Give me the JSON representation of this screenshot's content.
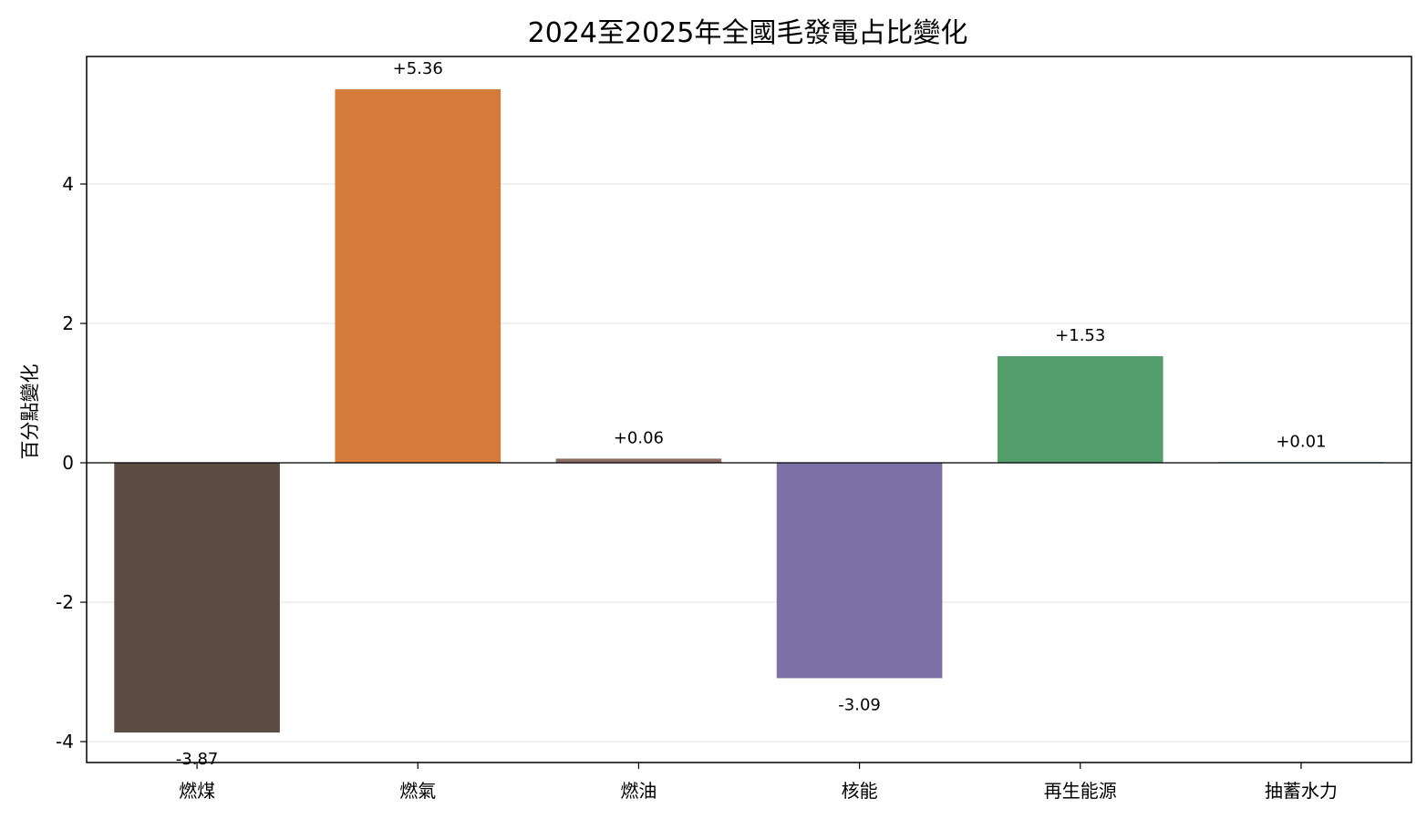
{
  "chart_data": {
    "type": "bar",
    "title": "2024至2025年全國毛發電占比變化",
    "xlabel": "",
    "ylabel": "百分點變化",
    "categories": [
      "燃煤",
      "燃氣",
      "燃油",
      "核能",
      "再生能源",
      "抽蓄水力"
    ],
    "values": [
      -3.87,
      5.36,
      0.06,
      -3.09,
      1.53,
      0.01
    ],
    "value_labels": [
      "-3.87",
      "+5.36",
      "+0.06",
      "-3.09",
      "+1.53",
      "+0.01"
    ],
    "colors": [
      "#5c4d44",
      "#d47b3c",
      "#8c6e63",
      "#7b71a6",
      "#529e6b",
      "#4e7fb3"
    ],
    "yticks": [
      -4,
      -2,
      0,
      2,
      4
    ],
    "ytick_labels": [
      "-4",
      "-2",
      "0",
      "2",
      "4"
    ],
    "ylim": [
      -4.3,
      5.83
    ],
    "grid": "horizontal",
    "zero_line": true
  }
}
